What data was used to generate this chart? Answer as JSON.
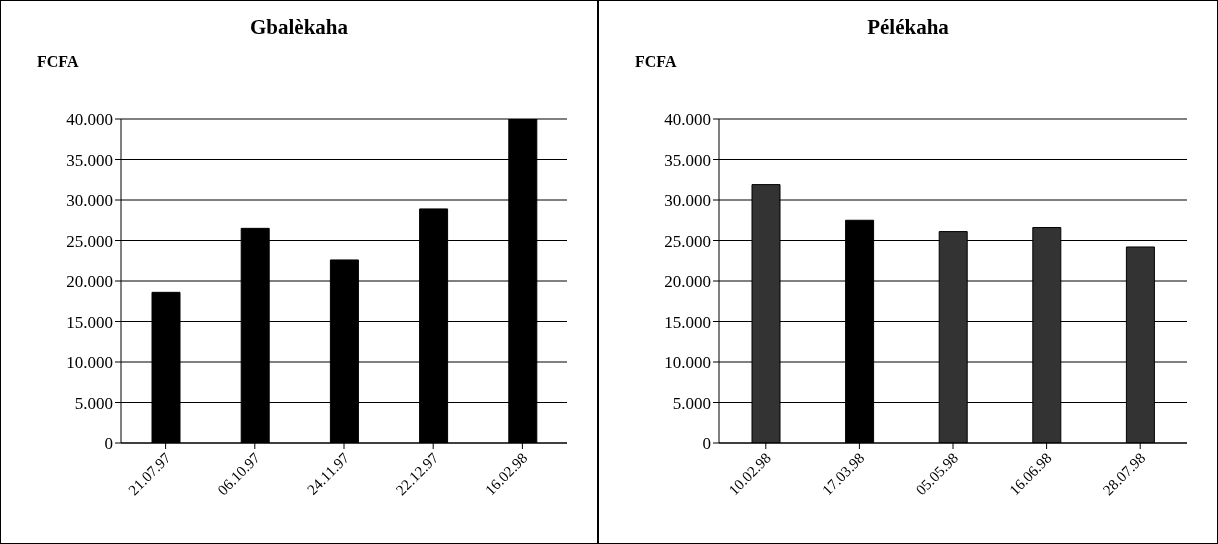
{
  "chart_data": [
    {
      "type": "bar",
      "title": "Gbalèkaha",
      "ylabel": "FCFA",
      "categories": [
        "21.07.97",
        "06.10.97",
        "24.11.97",
        "22.12.97",
        "16.02.98"
      ],
      "values": [
        18600,
        26500,
        22600,
        28900,
        40000
      ],
      "color": "#000000",
      "ylim": [
        0,
        40000
      ],
      "yticks": [
        {
          "value": 0,
          "label": "0"
        },
        {
          "value": 5000,
          "label": "5.000"
        },
        {
          "value": 10000,
          "label": "10.000"
        },
        {
          "value": 15000,
          "label": "15.000"
        },
        {
          "value": 20000,
          "label": "20.000"
        },
        {
          "value": 25000,
          "label": "25.000"
        },
        {
          "value": 30000,
          "label": "30.000"
        },
        {
          "value": 35000,
          "label": "35.000"
        },
        {
          "value": 40000,
          "label": "40.000"
        }
      ],
      "grid": "y",
      "legend": false
    },
    {
      "type": "bar",
      "title": "Pélékaha",
      "ylabel": "FCFA",
      "categories": [
        "10.02.98",
        "17.03.98",
        "05.05.98",
        "16.06.98",
        "28.07.98"
      ],
      "values": [
        31900,
        27500,
        26100,
        26600,
        24200
      ],
      "colors": [
        "#333333",
        "#000000",
        "#333333",
        "#333333",
        "#333333"
      ],
      "ylim": [
        0,
        40000
      ],
      "yticks": [
        {
          "value": 0,
          "label": "0"
        },
        {
          "value": 5000,
          "label": "5.000"
        },
        {
          "value": 10000,
          "label": "10.000"
        },
        {
          "value": 15000,
          "label": "15.000"
        },
        {
          "value": 20000,
          "label": "20.000"
        },
        {
          "value": 25000,
          "label": "25.000"
        },
        {
          "value": 30000,
          "label": "30.000"
        },
        {
          "value": 35000,
          "label": "35.000"
        },
        {
          "value": 40000,
          "label": "40.000"
        }
      ],
      "grid": "y",
      "legend": false
    }
  ]
}
